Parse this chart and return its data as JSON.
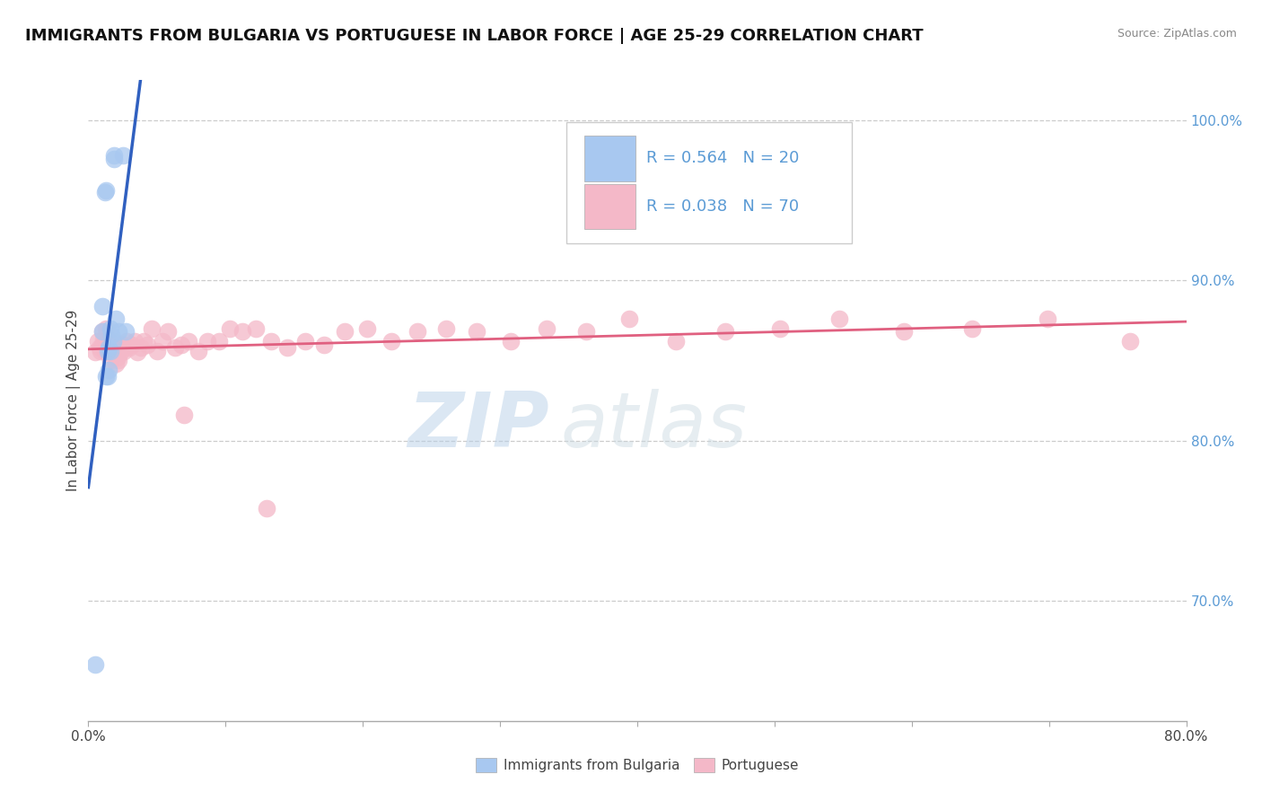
{
  "title": "IMMIGRANTS FROM BULGARIA VS PORTUGUESE IN LABOR FORCE | AGE 25-29 CORRELATION CHART",
  "source": "Source: ZipAtlas.com",
  "ylabel": "In Labor Force | Age 25-29",
  "xlim": [
    0.0,
    0.8
  ],
  "ylim": [
    0.625,
    1.025
  ],
  "xticks": [
    0.0,
    0.1,
    0.2,
    0.3,
    0.4,
    0.5,
    0.6,
    0.7,
    0.8
  ],
  "xticklabels": [
    "0.0%",
    "",
    "",
    "",
    "",
    "",
    "",
    "",
    "80.0%"
  ],
  "yticks_right": [
    0.7,
    0.8,
    0.9,
    1.0
  ],
  "yticklabels_right": [
    "70.0%",
    "80.0%",
    "90.0%",
    "100.0%"
  ],
  "legend_r_bulgaria": "R = 0.564",
  "legend_n_bulgaria": "N = 20",
  "legend_r_portuguese": "R = 0.038",
  "legend_n_portuguese": "N = 70",
  "color_bulgaria": "#a8c8f0",
  "color_portuguese": "#f4b8c8",
  "color_line_bulgaria": "#3060c0",
  "color_line_portuguese": "#e06080",
  "watermark_zip": "ZIP",
  "watermark_atlas": "atlas",
  "bulgaria_x": [
    0.005,
    0.01,
    0.01,
    0.012,
    0.013,
    0.013,
    0.014,
    0.014,
    0.015,
    0.015,
    0.016,
    0.016,
    0.017,
    0.018,
    0.019,
    0.019,
    0.02,
    0.022,
    0.025,
    0.027
  ],
  "bulgaria_y": [
    0.66,
    0.868,
    0.884,
    0.955,
    0.956,
    0.84,
    0.856,
    0.84,
    0.858,
    0.844,
    0.87,
    0.856,
    0.866,
    0.862,
    0.976,
    0.978,
    0.876,
    0.868,
    0.978,
    0.868
  ],
  "portuguese_x": [
    0.005,
    0.007,
    0.008,
    0.009,
    0.01,
    0.01,
    0.011,
    0.012,
    0.012,
    0.013,
    0.013,
    0.014,
    0.015,
    0.015,
    0.016,
    0.017,
    0.018,
    0.019,
    0.02,
    0.021,
    0.022,
    0.023,
    0.024,
    0.025,
    0.026,
    0.028,
    0.03,
    0.032,
    0.034,
    0.036,
    0.038,
    0.04,
    0.043,
    0.046,
    0.05,
    0.054,
    0.058,
    0.063,
    0.068,
    0.073,
    0.08,
    0.087,
    0.095,
    0.103,
    0.112,
    0.122,
    0.133,
    0.145,
    0.158,
    0.172,
    0.187,
    0.203,
    0.221,
    0.24,
    0.261,
    0.283,
    0.308,
    0.334,
    0.363,
    0.394,
    0.428,
    0.464,
    0.504,
    0.547,
    0.594,
    0.644,
    0.699,
    0.759,
    0.07,
    0.13
  ],
  "portuguese_y": [
    0.855,
    0.862,
    0.858,
    0.856,
    0.868,
    0.86,
    0.863,
    0.856,
    0.858,
    0.87,
    0.856,
    0.862,
    0.86,
    0.862,
    0.85,
    0.858,
    0.86,
    0.862,
    0.848,
    0.852,
    0.85,
    0.855,
    0.86,
    0.86,
    0.856,
    0.862,
    0.858,
    0.86,
    0.862,
    0.855,
    0.858,
    0.862,
    0.86,
    0.87,
    0.856,
    0.862,
    0.868,
    0.858,
    0.86,
    0.862,
    0.856,
    0.862,
    0.862,
    0.87,
    0.868,
    0.87,
    0.862,
    0.858,
    0.862,
    0.86,
    0.868,
    0.87,
    0.862,
    0.868,
    0.87,
    0.868,
    0.862,
    0.87,
    0.868,
    0.876,
    0.862,
    0.868,
    0.87,
    0.876,
    0.868,
    0.87,
    0.876,
    0.862,
    0.816,
    0.758
  ],
  "title_fontsize": 13,
  "axis_fontsize": 11,
  "tick_fontsize": 11
}
